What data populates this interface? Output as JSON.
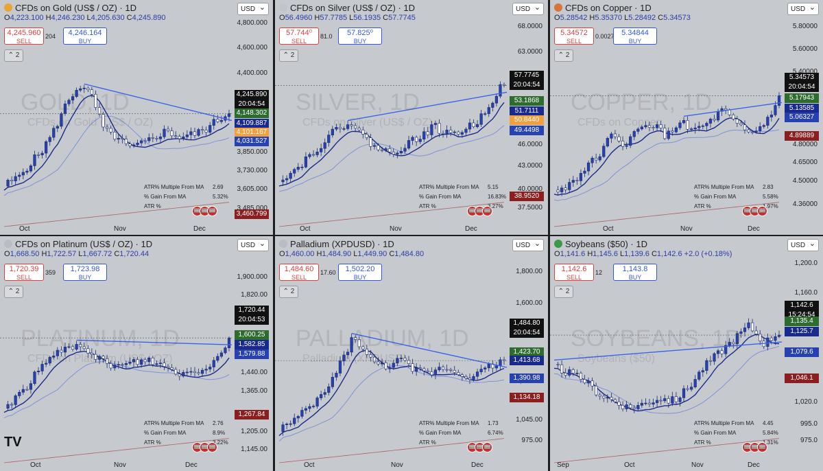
{
  "panels": [
    {
      "id": "gold",
      "title": "CFDs on Gold (US$ / OZ) · 1D",
      "icon_color": "#e8a531",
      "ohlc": {
        "o": "4,223.100",
        "h": "4,246.230",
        "l": "4,205.630",
        "c": "4,245.890"
      },
      "sell": "4,245.960",
      "sell_label": "SELL",
      "buy": "4,246.164",
      "buy_label": "BUY",
      "spread": "204",
      "collapse": "2",
      "currency": "USD",
      "watermark": "GOLD, 1D",
      "watermark2": "CFDs on Gold (US$ / OZ)",
      "price_ticks": [
        "4,800.000",
        "4,600.000",
        "4,400.000",
        "3,850.000",
        "3,730.000",
        "3,605.000",
        "3,485.000"
      ],
      "labels": [
        {
          "text": "4,245.890",
          "sub": "20:04:54",
          "color": "#111111"
        },
        {
          "text": "4,148.302",
          "color": "#2e6b2e"
        },
        {
          "text": "4,109.887",
          "color": "#1a2a8c"
        },
        {
          "text": "4,101.167",
          "color": "#f0a040"
        },
        {
          "text": "4,031.527",
          "color": "#2741b0"
        },
        {
          "text": "3,460.799",
          "color": "#8b1e1e"
        }
      ],
      "x_ticks": [
        "Oct",
        "Nov",
        "Dec"
      ],
      "atr": {
        "l1": "ATR% Multiple From MA",
        "v1": "2.69",
        "l2": "% Gain From MA",
        "v2": "5.32%",
        "l3": "ATR %",
        "v3": ""
      }
    },
    {
      "id": "silver",
      "title": "CFDs on Silver (US$ / OZ) · 1D",
      "icon_color": "#c0c4cc",
      "ohlc": {
        "o": "56.4960",
        "h": "57.7785",
        "l": "56.1935",
        "c": "57.7745"
      },
      "sell": "57.744⁰",
      "sell_label": "SELL",
      "buy": "57.825⁰",
      "buy_label": "BUY",
      "spread": "81.0",
      "collapse": "2",
      "currency": "USD",
      "watermark": "SILVER, 1D",
      "watermark2": "CFDs on Silver (US$ / OZ)",
      "price_ticks": [
        "68.0000",
        "63.0000",
        "46.0000",
        "43.0000",
        "40.0000",
        "37.5000"
      ],
      "labels": [
        {
          "text": "57.7745",
          "sub": "20:04:54",
          "color": "#111111"
        },
        {
          "text": "53.1868",
          "color": "#2e6b2e"
        },
        {
          "text": "51.7111",
          "color": "#1a2a8c"
        },
        {
          "text": "50.8440",
          "color": "#f0a040"
        },
        {
          "text": "49.4498",
          "color": "#2741b0"
        },
        {
          "text": "38.9520",
          "color": "#8b1e1e"
        }
      ],
      "x_ticks": [
        "Oct",
        "Nov",
        "Dec"
      ],
      "atr": {
        "l1": "ATR% Multiple From MA",
        "v1": "5.15",
        "l2": "% Gain From MA",
        "v2": "16.83%",
        "l3": "ATR %",
        "v3": "3.27%"
      }
    },
    {
      "id": "copper",
      "title": "CFDs on Copper · 1D",
      "icon_color": "#d9743a",
      "ohlc": {
        "o": "5.28542",
        "h": "5.35370",
        "l": "5.28492",
        "c": "5.34573"
      },
      "sell": "5.34572",
      "sell_label": "SELL",
      "buy": "5.34844",
      "buy_label": "BUY",
      "spread": "0.00272",
      "collapse": "2",
      "currency": "USD",
      "watermark": "COPPER, 1D",
      "watermark2": "CFDs on Copper",
      "price_ticks": [
        "5.80000",
        "5.60000",
        "5.40000",
        "4.80000",
        "4.65000",
        "4.50000",
        "4.36000"
      ],
      "labels": [
        {
          "text": "5.34573",
          "sub": "20:04:54",
          "color": "#111111"
        },
        {
          "text": "5.17943",
          "color": "#2e6b2e"
        },
        {
          "text": "5.13585",
          "color": "#1a2a8c"
        },
        {
          "text": "5.06327",
          "color": "#2741b0"
        },
        {
          "text": "4.89889",
          "color": "#8b1e1e"
        }
      ],
      "x_ticks": [
        "Oct",
        "Nov",
        "Dec"
      ],
      "atr": {
        "l1": "ATR% Multiple From MA",
        "v1": "2.83",
        "l2": "% Gain From MA",
        "v2": "5.58%",
        "l3": "ATR %",
        "v3": "1.97%"
      }
    },
    {
      "id": "platinum",
      "title": "CFDs on Platinum (US$ / OZ) · 1D",
      "icon_color": "#b8bcc4",
      "ohlc": {
        "o": "1,668.50",
        "h": "1,722.57",
        "l": "1,667.72",
        "c": "1,720.44"
      },
      "sell": "1,720.39",
      "sell_label": "SELL",
      "buy": "1,723.98",
      "buy_label": "BUY",
      "spread": "359",
      "collapse": "2",
      "currency": "USD",
      "watermark": "PLATINUM, 1D",
      "watermark2": "CFDs on Platinum (US$ / OZ)",
      "price_ticks": [
        "1,900.000",
        "1,820.00",
        "1,440.00",
        "1,365.00",
        "1,205.00",
        "1,145.00"
      ],
      "labels": [
        {
          "text": "1,720.44",
          "sub": "20:04:53",
          "color": "#111111"
        },
        {
          "text": "1,600.25",
          "color": "#2e6b2e"
        },
        {
          "text": "1,582.85",
          "color": "#1a2a8c"
        },
        {
          "text": "1,579.88",
          "color": "#2741b0"
        },
        {
          "text": "1,267.84",
          "color": "#8b1e1e"
        }
      ],
      "x_ticks": [
        "Oct",
        "Nov",
        "Dec"
      ],
      "atr": {
        "l1": "ATR% Multiple From MA",
        "v1": "2.76",
        "l2": "% Gain From MA",
        "v2": "8.9%",
        "l3": "ATR %",
        "v3": "3.22%"
      }
    },
    {
      "id": "palladium",
      "title": "Palladium (XPDUSD) · 1D",
      "icon_color": "#b8bcc4",
      "ohlc": {
        "o": "1,460.00",
        "h": "1,484.90",
        "l": "1,449.90",
        "c": "1,484.80"
      },
      "sell": "1,484.60",
      "sell_label": "SELL",
      "buy": "1,502.20",
      "buy_label": "BUY",
      "spread": "17.60",
      "collapse": "2",
      "currency": "USD",
      "watermark": "PALLADIUM, 1D",
      "watermark2": "Palladium (XPDUSD)",
      "price_ticks": [
        "1,800.00",
        "1,600.00",
        "1,200.00",
        "1,045.00",
        "975.00"
      ],
      "labels": [
        {
          "text": "1,484.80",
          "sub": "20:04:54",
          "color": "#111111"
        },
        {
          "text": "1,423.70",
          "color": "#2e6b2e"
        },
        {
          "text": "1,413.68",
          "color": "#1a2a8c"
        },
        {
          "text": "1,390.98",
          "color": "#2741b0"
        },
        {
          "text": "1,134.18",
          "color": "#8b1e1e"
        }
      ],
      "x_ticks": [
        "Oct",
        "Nov",
        "Dec"
      ],
      "atr": {
        "l1": "ATR% Multiple From MA",
        "v1": "1.73",
        "l2": "% Gain From MA",
        "v2": "6.74%",
        "l3": "ATR %",
        "v3": ""
      }
    },
    {
      "id": "soybeans",
      "title": "Soybeans ($50) · 1D",
      "icon_color": "#3a9a4a",
      "ohlc": {
        "o": "1,141.6",
        "h": "1,145.6",
        "l": "1,139.6",
        "c": "1,142.6",
        "chg": "+2.0 (+0.18%)"
      },
      "sell": "1,142.6",
      "sell_label": "SELL",
      "buy": "1,143.8",
      "buy_label": "BUY",
      "spread": "12",
      "collapse": "2",
      "currency": "USD",
      "watermark": "SOYBEANS, 1D",
      "watermark2": "Soybeans ($50)",
      "price_ticks": [
        "1,200.0",
        "1,160.0",
        "1,020.0",
        "995.0",
        "975.0"
      ],
      "labels": [
        {
          "text": "1,142.6",
          "sub": "15:24:54",
          "color": "#111111"
        },
        {
          "text": "1,135.4",
          "color": "#2e6b2e"
        },
        {
          "text": "1,125.7",
          "color": "#1a2a8c"
        },
        {
          "text": "1,079.6",
          "color": "#2741b0"
        },
        {
          "text": "1,046.1",
          "color": "#8b1e1e"
        }
      ],
      "x_ticks": [
        "Sep",
        "Oct",
        "Nov",
        "Dec"
      ],
      "atr": {
        "l1": "ATR% Multiple From MA",
        "v1": "4.45",
        "l2": "% Gain From MA",
        "v2": "5.84%",
        "l3": "ATR %",
        "v3": "1.31%"
      }
    }
  ],
  "logo": "TV",
  "colors": {
    "up": "#2741b0",
    "down": "#ffffff",
    "ma_fast": "#1a2a8c",
    "ma_mid": "#7d93d9",
    "ma_slow": "#b06060",
    "trend": "#3a63e8",
    "level": "#f0a040"
  }
}
